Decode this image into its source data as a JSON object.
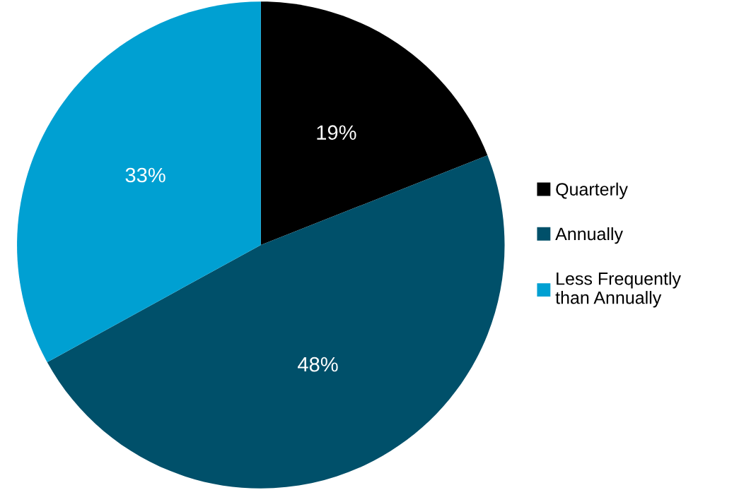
{
  "chart_data": {
    "type": "pie",
    "categories": [
      "Quarterly",
      "Annually",
      "Less Frequently than Annually"
    ],
    "values": [
      19,
      48,
      33
    ],
    "colors": [
      "#000000",
      "#00506a",
      "#00a0d2"
    ],
    "value_labels": [
      "19%",
      "48%",
      "33%"
    ],
    "legend": "right"
  }
}
